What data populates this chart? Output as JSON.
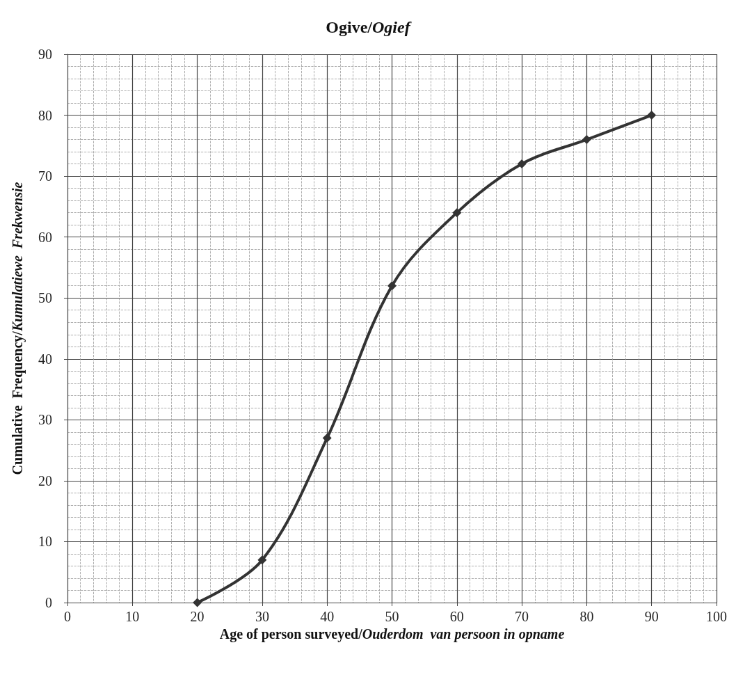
{
  "chart_data": {
    "type": "line",
    "title": "Ogive/Ogief",
    "xlabel": "Age of person surveyed/Ouderdom  van persoon in opname",
    "ylabel": "Cumulative  Frequency/Kumulatiewe  Frekwensie",
    "x": [
      20,
      30,
      40,
      50,
      60,
      70,
      80,
      90
    ],
    "series": [
      {
        "color": "#333333",
        "values": [
          0,
          7,
          27,
          52,
          64,
          72,
          76,
          80
        ]
      }
    ],
    "xlim": [
      0,
      100
    ],
    "xticks": [
      0,
      10,
      20,
      30,
      40,
      50,
      60,
      70,
      80,
      90,
      100
    ],
    "ylim": [
      0,
      90
    ],
    "yticks": [
      0,
      10,
      20,
      30,
      40,
      50,
      60,
      70,
      80,
      90
    ],
    "grid": true,
    "marker": "diamond",
    "line_style": "solid"
  }
}
